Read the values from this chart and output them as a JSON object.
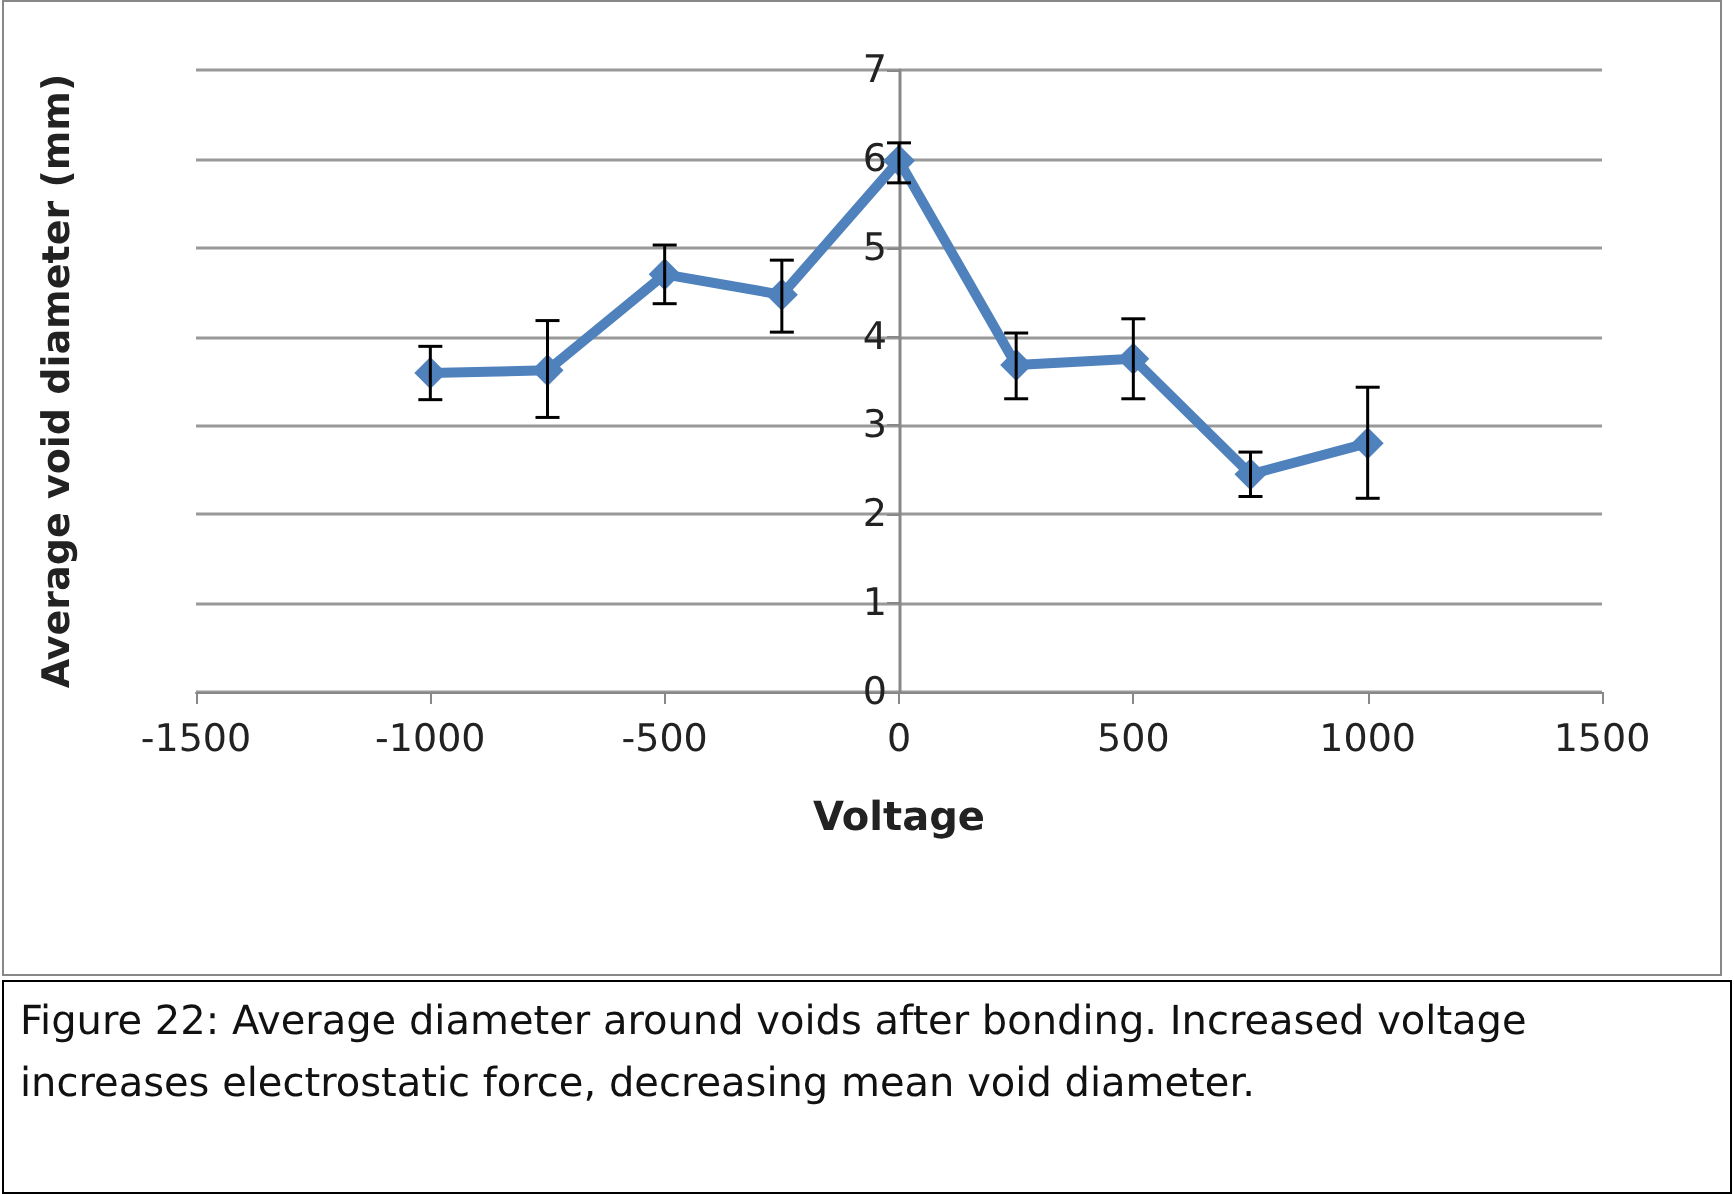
{
  "chart_data": {
    "type": "line",
    "xlabel": "Voltage",
    "ylabel": "Average void diameter (mm)",
    "x": [
      -1000,
      -750,
      -500,
      -250,
      0,
      250,
      500,
      750,
      1000
    ],
    "series": [
      {
        "color": "#4f81bd",
        "values": [
          3.59,
          3.62,
          4.7,
          4.47,
          5.98,
          3.68,
          3.75,
          2.45,
          2.8
        ],
        "errors": [
          [
            3.29,
            3.89
          ],
          [
            3.09,
            4.18
          ],
          [
            4.37,
            5.03
          ],
          [
            4.05,
            4.86
          ],
          [
            5.73,
            6.18
          ],
          [
            3.3,
            4.04
          ],
          [
            3.3,
            4.2
          ],
          [
            2.2,
            2.7
          ],
          [
            2.18,
            3.43
          ]
        ]
      }
    ],
    "xlim": [
      -1500,
      1500
    ],
    "xticks": [
      -1500,
      -1000,
      -500,
      0,
      500,
      1000,
      1500
    ],
    "ylim": [
      0,
      7
    ],
    "yticks": [
      0,
      1,
      2,
      3,
      4,
      5,
      6,
      7
    ],
    "grid": "y",
    "marker": "diamond",
    "line_style": "solid",
    "annotations": [
      "Figure 22: Average diameter around voids after bonding.  Increased voltage increases electrostatic force, decreasing mean void diameter."
    ]
  }
}
